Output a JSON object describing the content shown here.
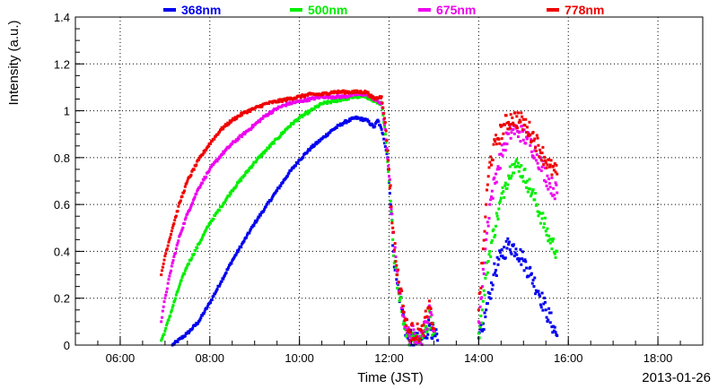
{
  "chart_data": {
    "type": "scatter",
    "title": "",
    "xlabel": "Time (JST)",
    "ylabel": "Intensity (a.u.)",
    "date_label": "2013-01-26",
    "xlim_hours": [
      5.0,
      19.0
    ],
    "ylim": [
      0,
      1.4
    ],
    "x_ticks": [
      {
        "h": 6,
        "label": "06:00"
      },
      {
        "h": 8,
        "label": "08:00"
      },
      {
        "h": 10,
        "label": "10:00"
      },
      {
        "h": 12,
        "label": "12:00"
      },
      {
        "h": 14,
        "label": "14:00"
      },
      {
        "h": 16,
        "label": "16:00"
      },
      {
        "h": 18,
        "label": "18:00"
      }
    ],
    "y_ticks": [
      {
        "v": 0,
        "label": "0"
      },
      {
        "v": 0.2,
        "label": "0.2"
      },
      {
        "v": 0.4,
        "label": "0.4"
      },
      {
        "v": 0.6,
        "label": "0.6"
      },
      {
        "v": 0.8,
        "label": "0.8"
      },
      {
        "v": 1.0,
        "label": "1"
      },
      {
        "v": 1.2,
        "label": "1.2"
      },
      {
        "v": 1.4,
        "label": "1.4"
      }
    ],
    "grid": true,
    "legend_position": "top",
    "series": [
      {
        "name": "368nm",
        "color": "#0000ee",
        "points": [
          [
            "07:10",
            0.0
          ],
          [
            "07:30",
            0.05
          ],
          [
            "07:45",
            0.1
          ],
          [
            "08:00",
            0.18
          ],
          [
            "08:15",
            0.27
          ],
          [
            "08:30",
            0.36
          ],
          [
            "08:45",
            0.44
          ],
          [
            "09:00",
            0.52
          ],
          [
            "09:15",
            0.59
          ],
          [
            "09:30",
            0.66
          ],
          [
            "09:45",
            0.73
          ],
          [
            "10:00",
            0.79
          ],
          [
            "10:15",
            0.84
          ],
          [
            "10:30",
            0.88
          ],
          [
            "10:45",
            0.92
          ],
          [
            "11:00",
            0.95
          ],
          [
            "11:15",
            0.97
          ],
          [
            "11:30",
            0.96
          ],
          [
            "11:40",
            0.93
          ],
          [
            "11:45",
            0.96
          ],
          [
            "11:52",
            0.9
          ],
          [
            "11:58",
            0.8
          ],
          [
            "12:02",
            0.6
          ],
          [
            "12:06",
            0.4
          ],
          [
            "12:10",
            0.28
          ],
          [
            "12:15",
            0.2
          ],
          [
            "12:20",
            0.1
          ],
          [
            "12:25",
            0.03
          ],
          [
            "12:40",
            0.01
          ],
          [
            "12:45",
            0.03
          ],
          [
            "12:50",
            0.06
          ],
          [
            "12:55",
            0.09
          ],
          [
            "13:00",
            0.04
          ],
          [
            "13:05",
            0.02
          ],
          [
            "14:00",
            0.03
          ],
          [
            "14:05",
            0.06
          ],
          [
            "14:10",
            0.15
          ],
          [
            "14:15",
            0.22
          ],
          [
            "14:20",
            0.3
          ],
          [
            "14:30",
            0.38
          ],
          [
            "14:40",
            0.43
          ],
          [
            "14:50",
            0.41
          ],
          [
            "15:00",
            0.36
          ],
          [
            "15:10",
            0.3
          ],
          [
            "15:20",
            0.23
          ],
          [
            "15:30",
            0.15
          ],
          [
            "15:40",
            0.08
          ],
          [
            "15:45",
            0.04
          ]
        ]
      },
      {
        "name": "500nm",
        "color": "#00ee00",
        "points": [
          [
            "06:55",
            0.02
          ],
          [
            "07:00",
            0.06
          ],
          [
            "07:10",
            0.16
          ],
          [
            "07:20",
            0.26
          ],
          [
            "07:30",
            0.34
          ],
          [
            "07:45",
            0.43
          ],
          [
            "08:00",
            0.52
          ],
          [
            "08:15",
            0.59
          ],
          [
            "08:30",
            0.66
          ],
          [
            "08:45",
            0.72
          ],
          [
            "09:00",
            0.78
          ],
          [
            "09:15",
            0.83
          ],
          [
            "09:30",
            0.88
          ],
          [
            "09:45",
            0.93
          ],
          [
            "10:00",
            0.97
          ],
          [
            "10:15",
            1.0
          ],
          [
            "10:30",
            1.03
          ],
          [
            "10:45",
            1.04
          ],
          [
            "11:00",
            1.05
          ],
          [
            "11:15",
            1.06
          ],
          [
            "11:30",
            1.06
          ],
          [
            "11:40",
            1.04
          ],
          [
            "11:50",
            1.03
          ],
          [
            "11:55",
            0.9
          ],
          [
            "12:00",
            0.7
          ],
          [
            "12:05",
            0.45
          ],
          [
            "12:10",
            0.3
          ],
          [
            "12:15",
            0.2
          ],
          [
            "12:20",
            0.1
          ],
          [
            "12:25",
            0.04
          ],
          [
            "12:45",
            0.03
          ],
          [
            "12:50",
            0.08
          ],
          [
            "12:55",
            0.12
          ],
          [
            "13:00",
            0.05
          ],
          [
            "14:00",
            0.05
          ],
          [
            "14:05",
            0.15
          ],
          [
            "14:10",
            0.3
          ],
          [
            "14:15",
            0.4
          ],
          [
            "14:25",
            0.55
          ],
          [
            "14:35",
            0.68
          ],
          [
            "14:45",
            0.77
          ],
          [
            "14:55",
            0.76
          ],
          [
            "15:05",
            0.7
          ],
          [
            "15:15",
            0.62
          ],
          [
            "15:25",
            0.54
          ],
          [
            "15:35",
            0.45
          ],
          [
            "15:45",
            0.4
          ]
        ]
      },
      {
        "name": "675nm",
        "color": "#ee00ee",
        "points": [
          [
            "06:55",
            0.1
          ],
          [
            "07:00",
            0.2
          ],
          [
            "07:10",
            0.35
          ],
          [
            "07:20",
            0.47
          ],
          [
            "07:30",
            0.56
          ],
          [
            "07:45",
            0.67
          ],
          [
            "08:00",
            0.75
          ],
          [
            "08:15",
            0.81
          ],
          [
            "08:30",
            0.86
          ],
          [
            "08:45",
            0.9
          ],
          [
            "09:00",
            0.94
          ],
          [
            "09:15",
            0.98
          ],
          [
            "09:30",
            1.01
          ],
          [
            "09:45",
            1.03
          ],
          [
            "10:00",
            1.04
          ],
          [
            "10:15",
            1.05
          ],
          [
            "10:30",
            1.06
          ],
          [
            "10:45",
            1.06
          ],
          [
            "11:00",
            1.06
          ],
          [
            "11:15",
            1.07
          ],
          [
            "11:30",
            1.07
          ],
          [
            "11:40",
            1.05
          ],
          [
            "11:50",
            1.03
          ],
          [
            "11:55",
            0.92
          ],
          [
            "12:00",
            0.72
          ],
          [
            "12:05",
            0.48
          ],
          [
            "12:10",
            0.32
          ],
          [
            "12:15",
            0.22
          ],
          [
            "12:20",
            0.12
          ],
          [
            "12:25",
            0.05
          ],
          [
            "12:45",
            0.04
          ],
          [
            "12:50",
            0.1
          ],
          [
            "12:55",
            0.14
          ],
          [
            "13:00",
            0.06
          ],
          [
            "14:00",
            0.1
          ],
          [
            "14:05",
            0.25
          ],
          [
            "14:10",
            0.45
          ],
          [
            "14:15",
            0.6
          ],
          [
            "14:25",
            0.75
          ],
          [
            "14:35",
            0.86
          ],
          [
            "14:45",
            0.92
          ],
          [
            "14:55",
            0.91
          ],
          [
            "15:05",
            0.88
          ],
          [
            "15:15",
            0.83
          ],
          [
            "15:25",
            0.76
          ],
          [
            "15:35",
            0.69
          ],
          [
            "15:45",
            0.65
          ]
        ]
      },
      {
        "name": "778nm",
        "color": "#ee0000",
        "points": [
          [
            "06:55",
            0.3
          ],
          [
            "07:00",
            0.38
          ],
          [
            "07:10",
            0.5
          ],
          [
            "07:20",
            0.61
          ],
          [
            "07:30",
            0.7
          ],
          [
            "07:45",
            0.79
          ],
          [
            "08:00",
            0.86
          ],
          [
            "08:15",
            0.92
          ],
          [
            "08:30",
            0.96
          ],
          [
            "08:45",
            0.99
          ],
          [
            "09:00",
            1.01
          ],
          [
            "09:15",
            1.03
          ],
          [
            "09:30",
            1.04
          ],
          [
            "09:45",
            1.05
          ],
          [
            "10:00",
            1.06
          ],
          [
            "10:15",
            1.07
          ],
          [
            "10:30",
            1.07
          ],
          [
            "10:45",
            1.08
          ],
          [
            "11:00",
            1.08
          ],
          [
            "11:15",
            1.08
          ],
          [
            "11:30",
            1.08
          ],
          [
            "11:40",
            1.05
          ],
          [
            "11:50",
            1.06
          ],
          [
            "11:55",
            0.95
          ],
          [
            "12:00",
            0.75
          ],
          [
            "12:05",
            0.5
          ],
          [
            "12:10",
            0.34
          ],
          [
            "12:15",
            0.24
          ],
          [
            "12:20",
            0.14
          ],
          [
            "12:25",
            0.06
          ],
          [
            "12:45",
            0.05
          ],
          [
            "12:50",
            0.12
          ],
          [
            "12:55",
            0.16
          ],
          [
            "13:00",
            0.07
          ],
          [
            "14:00",
            0.15
          ],
          [
            "14:05",
            0.35
          ],
          [
            "14:10",
            0.6
          ],
          [
            "14:15",
            0.78
          ],
          [
            "14:25",
            0.88
          ],
          [
            "14:35",
            0.94
          ],
          [
            "14:45",
            0.97
          ],
          [
            "14:55",
            0.96
          ],
          [
            "15:05",
            0.93
          ],
          [
            "15:15",
            0.88
          ],
          [
            "15:25",
            0.82
          ],
          [
            "15:35",
            0.76
          ],
          [
            "15:45",
            0.73
          ]
        ]
      }
    ]
  }
}
